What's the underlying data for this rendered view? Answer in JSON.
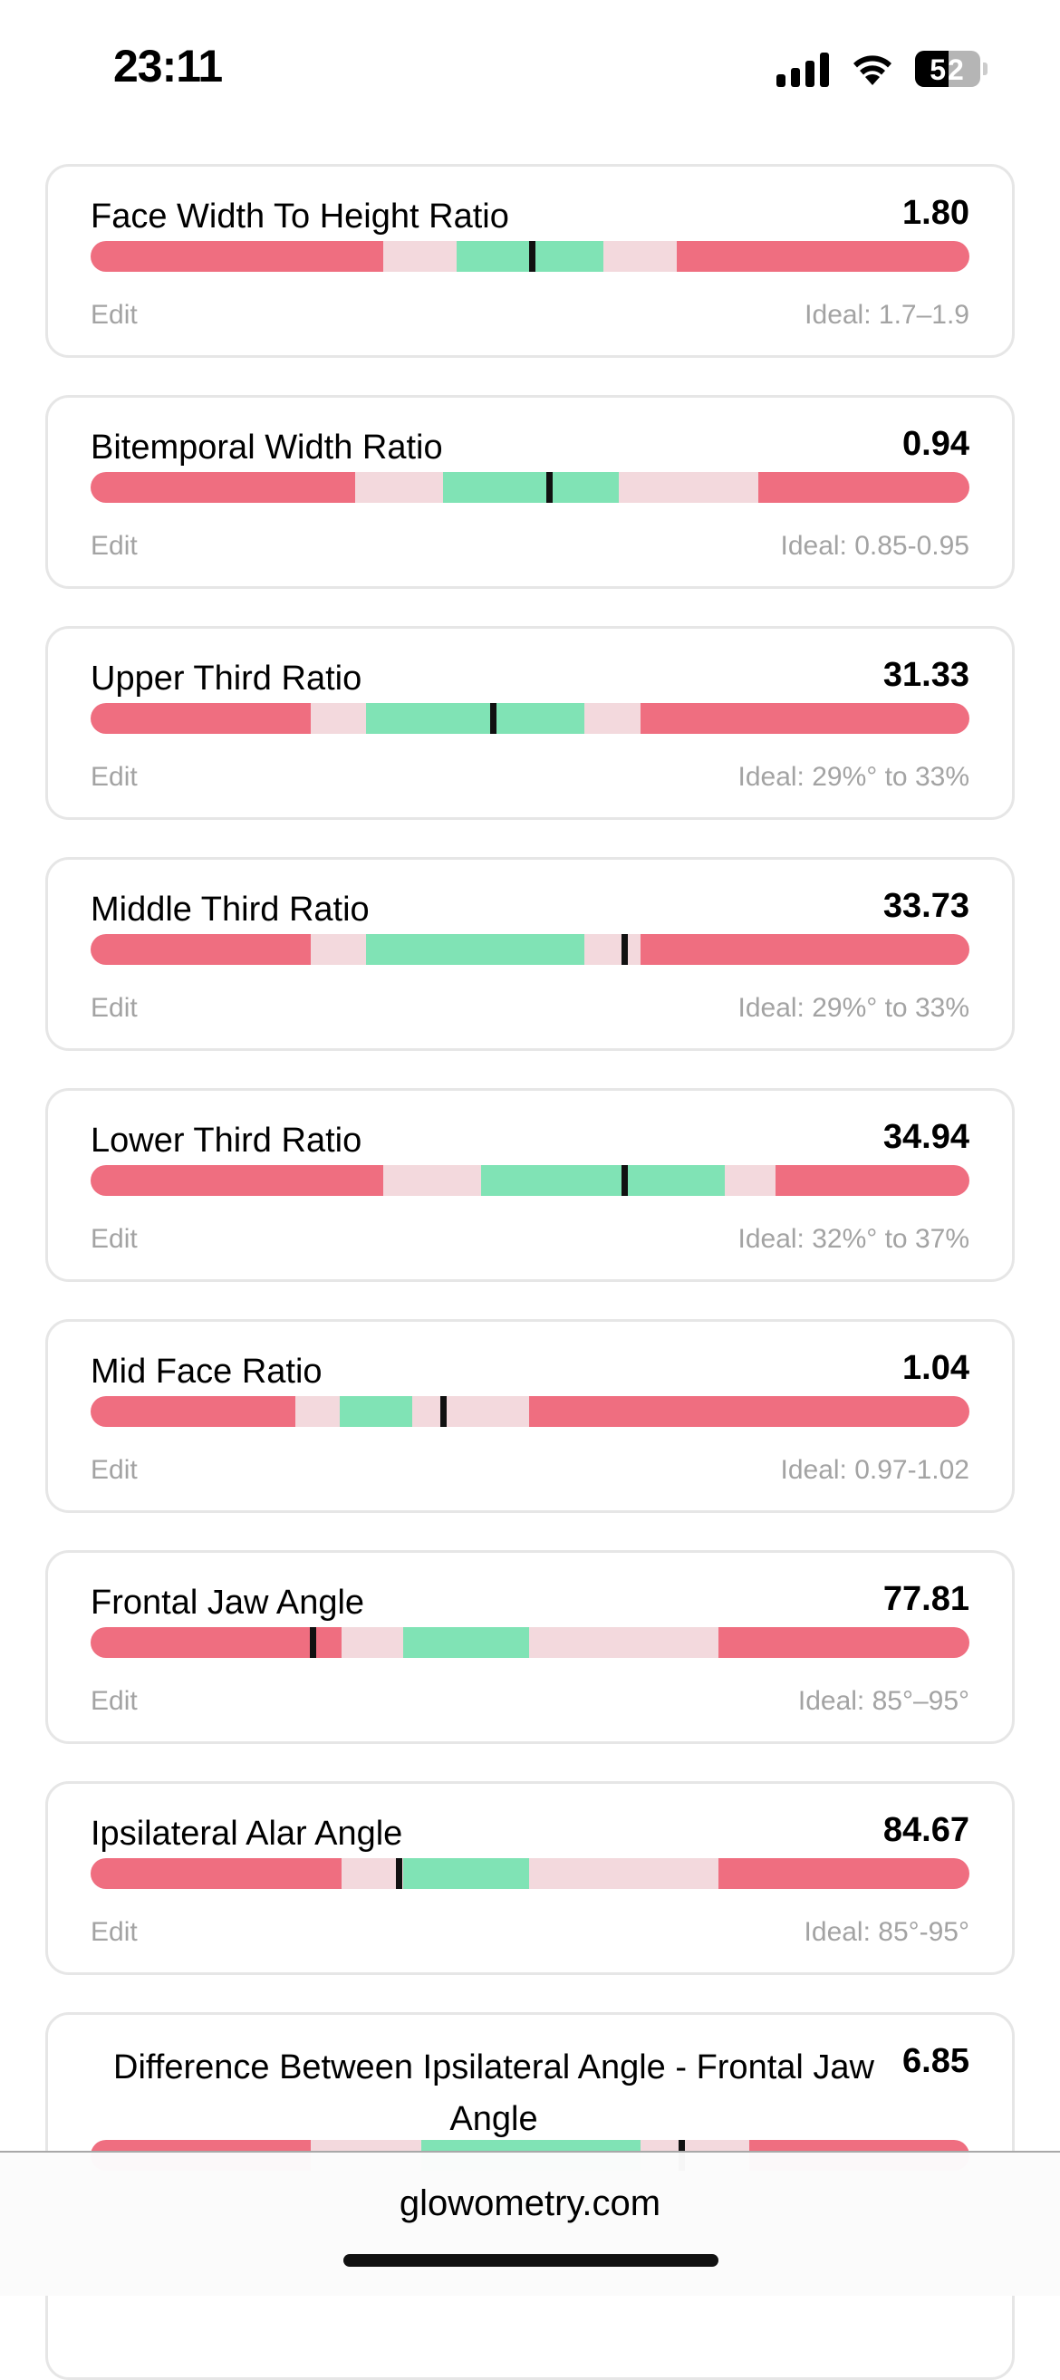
{
  "status_bar": {
    "time": "23:11",
    "battery": "52",
    "icons": [
      "cellular-signal-icon",
      "wifi-icon",
      "battery-icon"
    ]
  },
  "colors": {
    "bad": "#ef6e80",
    "near": "#f3d9dd",
    "ideal": "#80e3b5",
    "marker": "#111111"
  },
  "metrics": [
    {
      "title": "Face Width To Height Ratio",
      "value": "1.80",
      "edit": "Edit",
      "ideal": "Ideal: 1.7–1.9",
      "zones": [
        33.3,
        41.6,
        58.4,
        66.7
      ],
      "marker": 50.2
    },
    {
      "title": "Bitemporal Width Ratio",
      "value": "0.94",
      "edit": "Edit",
      "ideal": "Ideal: 0.85-0.95",
      "zones": [
        30.1,
        40.1,
        60.1,
        76.0
      ],
      "marker": 52.2
    },
    {
      "title": "Upper Third Ratio",
      "value": "31.33",
      "edit": "Edit",
      "ideal": "Ideal: 29%° to 33%",
      "zones": [
        25.0,
        31.3,
        56.2,
        62.6
      ],
      "marker": 45.8
    },
    {
      "title": "Middle Third Ratio",
      "value": "33.73",
      "edit": "Edit",
      "ideal": "Ideal: 29%° to 33%",
      "zones": [
        25.0,
        31.3,
        56.2,
        62.6
      ],
      "marker": 60.7
    },
    {
      "title": "Lower Third Ratio",
      "value": "34.94",
      "edit": "Edit",
      "ideal": "Ideal: 32%° to 37%",
      "zones": [
        33.3,
        44.4,
        72.2,
        77.9
      ],
      "marker": 60.7
    },
    {
      "title": "Mid Face Ratio",
      "value": "1.04",
      "edit": "Edit",
      "ideal": "Ideal: 0.97-1.02",
      "zones": [
        23.3,
        28.3,
        36.6,
        49.9
      ],
      "marker": 40.1
    },
    {
      "title": "Frontal Jaw Angle",
      "value": "77.81",
      "edit": "Edit",
      "ideal": "Ideal: 85°–95°",
      "zones": [
        28.6,
        35.6,
        49.9,
        71.4
      ],
      "marker": 25.3
    },
    {
      "title": "Ipsilateral Alar Angle",
      "value": "84.67",
      "edit": "Edit",
      "ideal": "Ideal: 85°-95°",
      "zones": [
        28.6,
        35.6,
        49.9,
        71.4
      ],
      "marker": 35.1
    },
    {
      "title": "Difference Between Ipsilateral Angle - Frontal Jaw Angle",
      "value": "6.85",
      "zones": [
        25.0,
        37.6,
        62.6,
        75.0
      ],
      "marker": 67.2
    }
  ],
  "footer": {
    "site": "glowometry.com"
  }
}
